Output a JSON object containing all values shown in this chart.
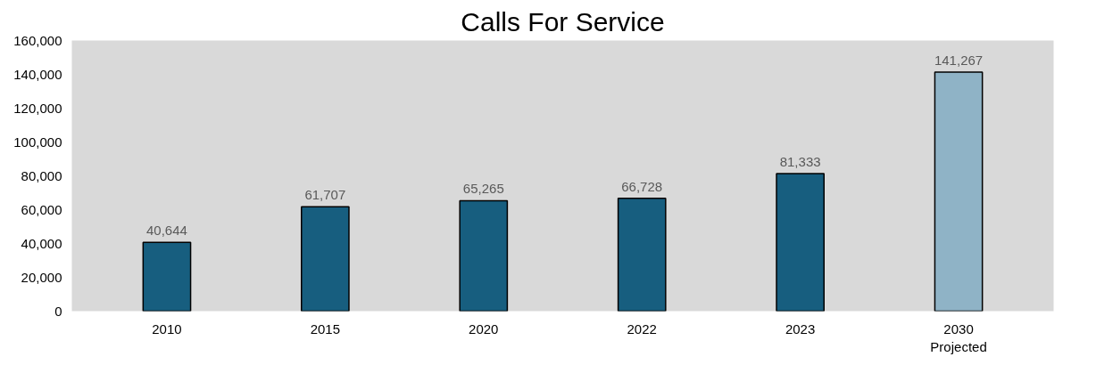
{
  "chart_data": {
    "type": "bar",
    "title": "Calls For Service",
    "categories": [
      "2010",
      "2015",
      "2020",
      "2022",
      "2023",
      "2030\nProjected"
    ],
    "values": [
      40644,
      61707,
      65265,
      66728,
      81333,
      141267
    ],
    "colors": [
      "#175e7f",
      "#175e7f",
      "#175e7f",
      "#175e7f",
      "#175e7f",
      "#8fb3c6"
    ],
    "ylim": [
      0,
      160000
    ],
    "yticks": [
      {
        "value": 0,
        "label": "0"
      },
      {
        "value": 20000,
        "label": "20,000"
      },
      {
        "value": 40000,
        "label": "40,000"
      },
      {
        "value": 60000,
        "label": "60,000"
      },
      {
        "value": 80000,
        "label": "80,000"
      },
      {
        "value": 100000,
        "label": "100,000"
      },
      {
        "value": 120000,
        "label": "120,000"
      },
      {
        "value": 140000,
        "label": "140,000"
      },
      {
        "value": 160000,
        "label": "160,000"
      }
    ],
    "value_labels": [
      "40,644",
      "61,707",
      "65,265",
      "66,728",
      "81,333",
      "141,267"
    ],
    "grid": false
  }
}
